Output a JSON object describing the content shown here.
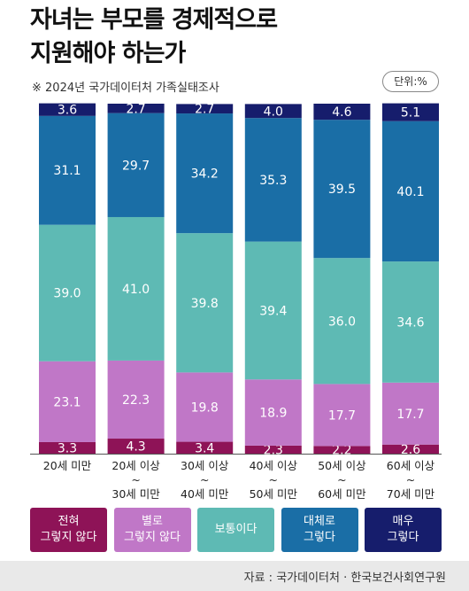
{
  "title_lines": [
    "자녀는 부모를 경제적으로",
    "지원해야 하는가"
  ],
  "subtitle": "※ 2024년 국가데이터처 가족실태조사",
  "unit_label": "단위:%",
  "source": "자료 : 국가데이터처 · 한국보건사회연구원",
  "colors": {
    "never": "#8e1357",
    "not_really": "#c077c7",
    "neutral": "#5ebab4",
    "mostly": "#1a6ea6",
    "very": "#161d6c"
  },
  "legend": [
    {
      "label": "전혀\n그렇지 않다",
      "key": "never"
    },
    {
      "label": "별로\n그렇지 않다",
      "key": "not_really"
    },
    {
      "label": "보통이다",
      "key": "neutral"
    },
    {
      "label": "대체로\n그렇다",
      "key": "mostly"
    },
    {
      "label": "매우\n그렇다",
      "key": "very"
    }
  ],
  "chart_data": {
    "type": "bar",
    "stacked": true,
    "categories": [
      [
        "20세 미만"
      ],
      [
        "20세 이상",
        "~",
        "30세 미만"
      ],
      [
        "30세 이상",
        "~",
        "40세 미만"
      ],
      [
        "40세 이상",
        "~",
        "50세 미만"
      ],
      [
        "50세 이상",
        "~",
        "60세 미만"
      ],
      [
        "60세 이상",
        "~",
        "70세 미만"
      ]
    ],
    "series": [
      {
        "name": "전혀 그렇지 않다",
        "key": "never",
        "values": [
          3.3,
          4.3,
          3.4,
          2.3,
          2.2,
          2.6
        ]
      },
      {
        "name": "별로 그렇지 않다",
        "key": "not_really",
        "values": [
          23.1,
          22.3,
          19.8,
          18.9,
          17.7,
          17.7
        ]
      },
      {
        "name": "보통이다",
        "key": "neutral",
        "values": [
          39.0,
          41.0,
          39.8,
          39.4,
          36.0,
          34.6
        ]
      },
      {
        "name": "대체로 그렇다",
        "key": "mostly",
        "values": [
          31.1,
          29.7,
          34.2,
          35.3,
          39.5,
          40.1
        ]
      },
      {
        "name": "매우 그렇다",
        "key": "very",
        "values": [
          3.6,
          2.7,
          2.7,
          4.0,
          4.6,
          5.1
        ]
      }
    ],
    "ylim": [
      0,
      100
    ],
    "legend_position": "bottom"
  }
}
